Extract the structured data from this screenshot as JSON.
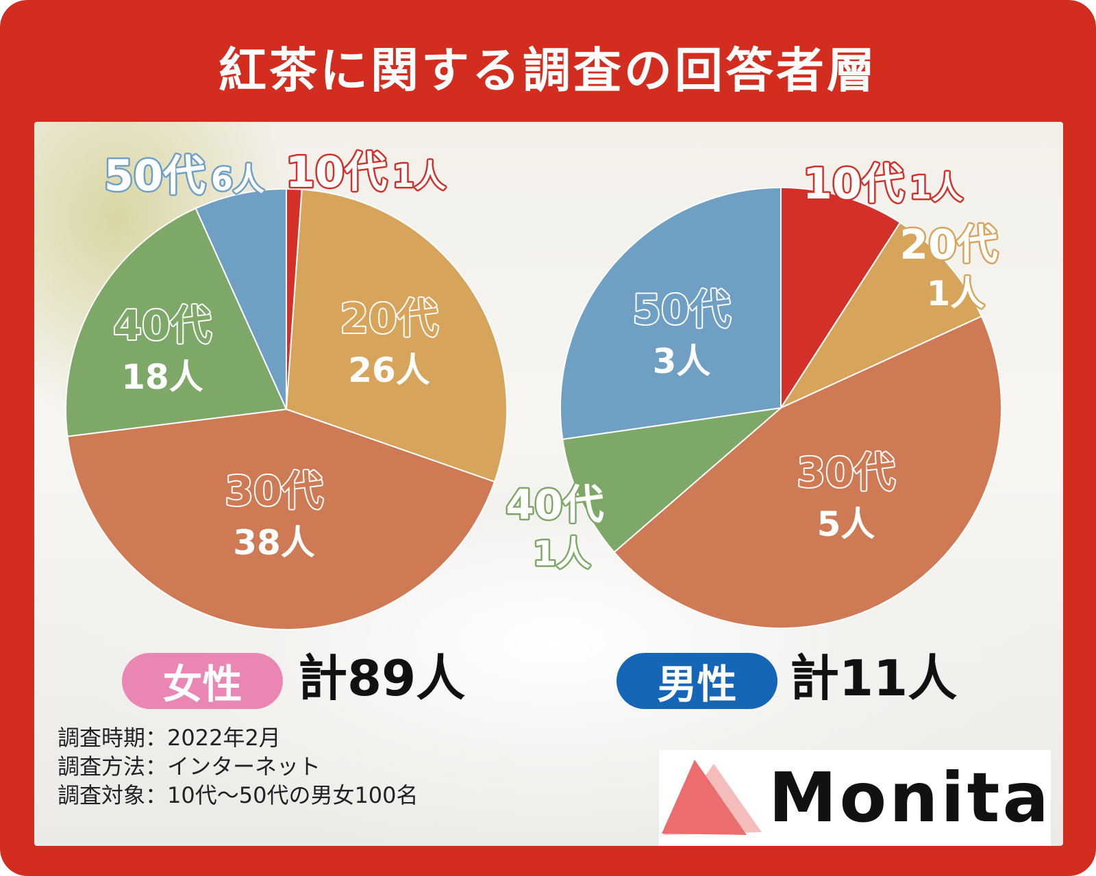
{
  "title": "紅茶に関する調査の回答者層",
  "colors": {
    "frame": "#d22d1f",
    "teens": "#d4302a",
    "twenties": "#d7a45c",
    "thirties": "#cd7a55",
    "forties": "#7ea868",
    "fifties": "#6fa0c3",
    "female_pill": "#e986b3",
    "male_pill": "#1566b7",
    "logo_triangle": "#ec6d6d"
  },
  "chart_data": [
    {
      "type": "pie",
      "group": "female",
      "categories": [
        "10代",
        "20代",
        "30代",
        "40代",
        "50代"
      ],
      "values": [
        1,
        26,
        38,
        18,
        6
      ],
      "value_labels": [
        "1人",
        "26人",
        "38人",
        "18人",
        "6人"
      ],
      "total_label": "計89人",
      "group_label": "女性"
    },
    {
      "type": "pie",
      "group": "male",
      "categories": [
        "10代",
        "20代",
        "30代",
        "40代",
        "50代"
      ],
      "values": [
        1,
        1,
        5,
        1,
        3
      ],
      "value_labels": [
        "1人",
        "1人",
        "5人",
        "1人",
        "3人"
      ],
      "total_label": "計11人",
      "group_label": "男性"
    }
  ],
  "female": {
    "label": "女性",
    "total": "計89人"
  },
  "male": {
    "label": "男性",
    "total": "計11人"
  },
  "survey": {
    "period": "調査時期：2022年2月",
    "method": "調査方法：インターネット",
    "target": "調査対象：10代〜50代の男女100名"
  },
  "logo": {
    "text": "Monita"
  }
}
